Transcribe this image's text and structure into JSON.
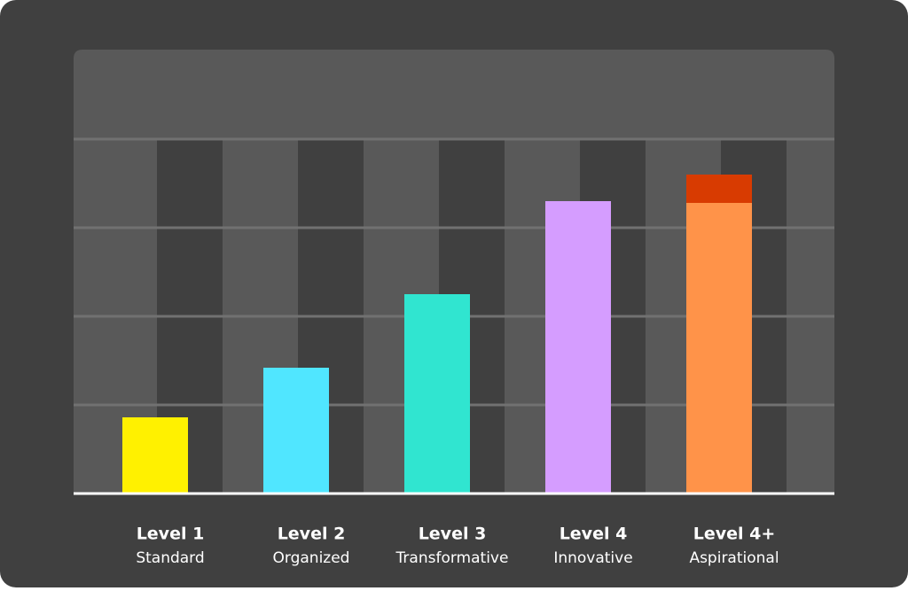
{
  "chart_data": {
    "type": "bar",
    "categories": [
      "Level 1",
      "Level 2",
      "Level 3",
      "Level 4",
      "Level 4+"
    ],
    "descriptions": [
      "Standard",
      "Organized",
      "Transformative",
      "Innovative",
      "Aspirational"
    ],
    "series": [
      {
        "colors": [
          "#fff100",
          "#50e6ff",
          "#30e5d0",
          "#d59dff",
          "#ff9349"
        ],
        "values": [
          0.86,
          1.42,
          2.25,
          3.3,
          3.28
        ]
      },
      {
        "color": "#d83b01",
        "values": [
          null,
          null,
          null,
          null,
          0.32
        ]
      }
    ],
    "ylim": [
      0,
      4
    ],
    "yticks": [
      1,
      2,
      3,
      4
    ],
    "grid": true
  }
}
